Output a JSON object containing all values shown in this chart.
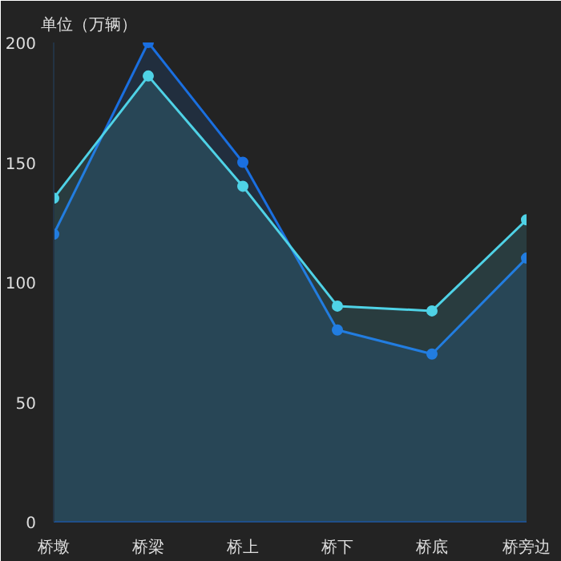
{
  "chart_data": {
    "type": "area",
    "ylabel": "单位（万辆）",
    "categories": [
      "桥墩",
      "桥梁",
      "桥上",
      "桥下",
      "桥底",
      "桥旁边"
    ],
    "series": [
      {
        "color": "#1a6fe0",
        "values": [
          120,
          200,
          150,
          80,
          70,
          110
        ]
      },
      {
        "color": "#4fd2e6",
        "values": [
          135,
          186,
          140,
          90,
          88,
          126
        ]
      }
    ],
    "ylim": [
      0,
      200
    ],
    "yticks": [
      0,
      50,
      100,
      150,
      200
    ],
    "grid": false,
    "marker": "circle"
  }
}
